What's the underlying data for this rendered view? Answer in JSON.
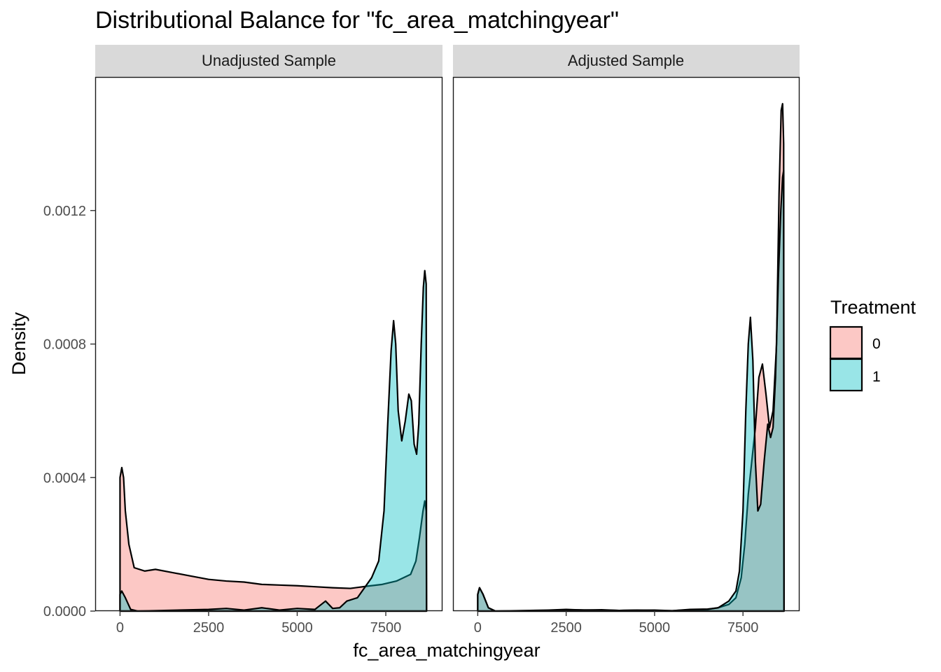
{
  "chart_data": {
    "type": "area",
    "title": "Distributional Balance for \"fc_area_matchingyear\"",
    "xlabel": "fc_area_matchingyear",
    "ylabel": "Density",
    "xlim": [
      -700,
      9100
    ],
    "ylim": [
      0,
      0.0016
    ],
    "x_ticks": [
      0,
      2500,
      5000,
      7500
    ],
    "x_tick_labels": [
      "0",
      "2500",
      "5000",
      "7500"
    ],
    "y_ticks": [
      0,
      0.0004,
      0.0008,
      0.0012
    ],
    "y_tick_labels": [
      "0.0000",
      "0.0004",
      "0.0008",
      "0.0012"
    ],
    "grid": false,
    "legend": {
      "title": "Treatment",
      "position": "right",
      "entries": [
        {
          "label": "0",
          "color": "#F8766D"
        },
        {
          "label": "1",
          "color": "#00BFC4"
        }
      ]
    },
    "fill_opacity": 0.4,
    "panels": [
      {
        "label": "Unadjusted Sample",
        "series": [
          {
            "name": "0",
            "color": "#F8766D",
            "points": [
              [
                0,
                0
              ],
              [
                0,
                0.0004
              ],
              [
                50,
                0.00043
              ],
              [
                100,
                0.0004
              ],
              [
                150,
                0.0003
              ],
              [
                250,
                0.0002
              ],
              [
                400,
                0.00013
              ],
              [
                700,
                0.00012
              ],
              [
                1000,
                0.000125
              ],
              [
                1500,
                0.000115
              ],
              [
                2000,
                0.000105
              ],
              [
                2500,
                9.5e-05
              ],
              [
                3000,
                9e-05
              ],
              [
                3500,
                8.7e-05
              ],
              [
                4000,
                8e-05
              ],
              [
                4500,
                7.8e-05
              ],
              [
                5000,
                7.6e-05
              ],
              [
                5500,
                7.3e-05
              ],
              [
                6000,
                7e-05
              ],
              [
                6500,
                6.8e-05
              ],
              [
                7000,
                7.5e-05
              ],
              [
                7400,
                8e-05
              ],
              [
                7800,
                9e-05
              ],
              [
                8200,
                0.00011
              ],
              [
                8350,
                0.00015
              ],
              [
                8450,
                0.00022
              ],
              [
                8550,
                0.0003
              ],
              [
                8600,
                0.00033
              ],
              [
                8640,
                0.0003
              ],
              [
                8650,
                0
              ]
            ]
          },
          {
            "name": "1",
            "color": "#00BFC4",
            "points": [
              [
                0,
                0
              ],
              [
                0,
                5e-05
              ],
              [
                50,
                6e-05
              ],
              [
                150,
                4e-05
              ],
              [
                300,
                5e-06
              ],
              [
                500,
                0
              ],
              [
                2500,
                5e-06
              ],
              [
                3000,
                8e-06
              ],
              [
                3500,
                3e-06
              ],
              [
                4000,
                1e-05
              ],
              [
                4500,
                3e-06
              ],
              [
                5000,
                8e-06
              ],
              [
                5500,
                5e-06
              ],
              [
                5800,
                3e-05
              ],
              [
                6000,
                8e-06
              ],
              [
                6200,
                1e-05
              ],
              [
                6400,
                3e-05
              ],
              [
                6700,
                4e-05
              ],
              [
                6900,
                7e-05
              ],
              [
                7100,
                0.0001
              ],
              [
                7300,
                0.00015
              ],
              [
                7450,
                0.0003
              ],
              [
                7550,
                0.00055
              ],
              [
                7650,
                0.00078
              ],
              [
                7720,
                0.00087
              ],
              [
                7780,
                0.0008
              ],
              [
                7850,
                0.0006
              ],
              [
                7950,
                0.00051
              ],
              [
                8050,
                0.00057
              ],
              [
                8150,
                0.00065
              ],
              [
                8220,
                0.00063
              ],
              [
                8300,
                0.0005
              ],
              [
                8370,
                0.00047
              ],
              [
                8430,
                0.00056
              ],
              [
                8500,
                0.0008
              ],
              [
                8560,
                0.00097
              ],
              [
                8600,
                0.00102
              ],
              [
                8640,
                0.00098
              ],
              [
                8650,
                0
              ]
            ]
          }
        ]
      },
      {
        "label": "Adjusted Sample",
        "series": [
          {
            "name": "0",
            "color": "#F8766D",
            "points": [
              [
                0,
                0
              ],
              [
                0,
                5e-05
              ],
              [
                50,
                7e-05
              ],
              [
                150,
                5e-05
              ],
              [
                300,
                1e-05
              ],
              [
                500,
                0
              ],
              [
                2000,
                2e-06
              ],
              [
                2500,
                4e-06
              ],
              [
                3500,
                3e-06
              ],
              [
                4000,
                2e-06
              ],
              [
                5000,
                3e-06
              ],
              [
                5500,
                1e-06
              ],
              [
                6000,
                4e-06
              ],
              [
                6500,
                5e-06
              ],
              [
                6800,
                1e-05
              ],
              [
                7100,
                2e-05
              ],
              [
                7300,
                4e-05
              ],
              [
                7450,
                0.0001
              ],
              [
                7550,
                0.0002
              ],
              [
                7650,
                0.00035
              ],
              [
                7750,
                0.00045
              ],
              [
                7850,
                0.00055
              ],
              [
                7950,
                0.0007
              ],
              [
                8050,
                0.00074
              ],
              [
                8150,
                0.00065
              ],
              [
                8250,
                0.00055
              ],
              [
                8350,
                0.0006
              ],
              [
                8450,
                0.0008
              ],
              [
                8520,
                0.00125
              ],
              [
                8580,
                0.0015
              ],
              [
                8620,
                0.00152
              ],
              [
                8650,
                0.0014
              ],
              [
                8660,
                0
              ]
            ]
          },
          {
            "name": "1",
            "color": "#00BFC4",
            "points": [
              [
                0,
                0
              ],
              [
                0,
                5e-05
              ],
              [
                50,
                7e-05
              ],
              [
                150,
                5e-05
              ],
              [
                300,
                1e-05
              ],
              [
                500,
                0
              ],
              [
                2000,
                3e-06
              ],
              [
                2500,
                5e-06
              ],
              [
                3000,
                3e-06
              ],
              [
                3500,
                4e-06
              ],
              [
                4000,
                2e-06
              ],
              [
                4500,
                3e-06
              ],
              [
                5000,
                2e-06
              ],
              [
                5500,
                1e-06
              ],
              [
                6000,
                5e-06
              ],
              [
                6500,
                6e-06
              ],
              [
                6800,
                1e-05
              ],
              [
                7100,
                3e-05
              ],
              [
                7300,
                6e-05
              ],
              [
                7400,
                0.00012
              ],
              [
                7500,
                0.0003
              ],
              [
                7580,
                0.0006
              ],
              [
                7650,
                0.0008
              ],
              [
                7710,
                0.00088
              ],
              [
                7780,
                0.00075
              ],
              [
                7850,
                0.00045
              ],
              [
                7920,
                0.0003
              ],
              [
                8000,
                0.00032
              ],
              [
                8100,
                0.00045
              ],
              [
                8200,
                0.00056
              ],
              [
                8280,
                0.00052
              ],
              [
                8350,
                0.00055
              ],
              [
                8420,
                0.0007
              ],
              [
                8500,
                0.001
              ],
              [
                8570,
                0.0012
              ],
              [
                8620,
                0.0013
              ],
              [
                8650,
                0.00132
              ],
              [
                8660,
                0
              ]
            ]
          }
        ]
      }
    ]
  }
}
